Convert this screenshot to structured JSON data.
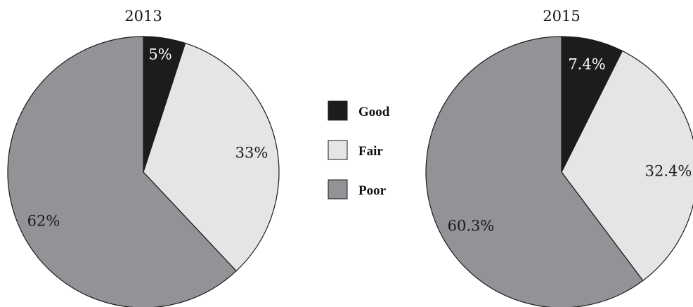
{
  "chart_data": [
    {
      "type": "pie",
      "title": "2013",
      "categories": [
        "Good",
        "Fair",
        "Poor"
      ],
      "values": [
        5,
        33,
        62
      ],
      "labels": [
        "5%",
        "33%",
        "62%"
      ]
    },
    {
      "type": "pie",
      "title": "2015",
      "categories": [
        "Good",
        "Fair",
        "Poor"
      ],
      "values": [
        7.4,
        32.4,
        60.3
      ],
      "labels": [
        "7.4%",
        "32.4%",
        "60.3%"
      ]
    }
  ],
  "legend": {
    "placement": "center",
    "items": [
      {
        "label": "Good",
        "color": "#1d1b1c"
      },
      {
        "label": "Fair",
        "color": "#e5e5e6"
      },
      {
        "label": "Poor",
        "color": "#929396"
      }
    ]
  },
  "colors": {
    "Good": "#1d1b1c",
    "Fair": "#e5e5e6",
    "Poor": "#929396",
    "label_on_dark": "#ffffff",
    "label_on_light": "#1a1a1a"
  }
}
